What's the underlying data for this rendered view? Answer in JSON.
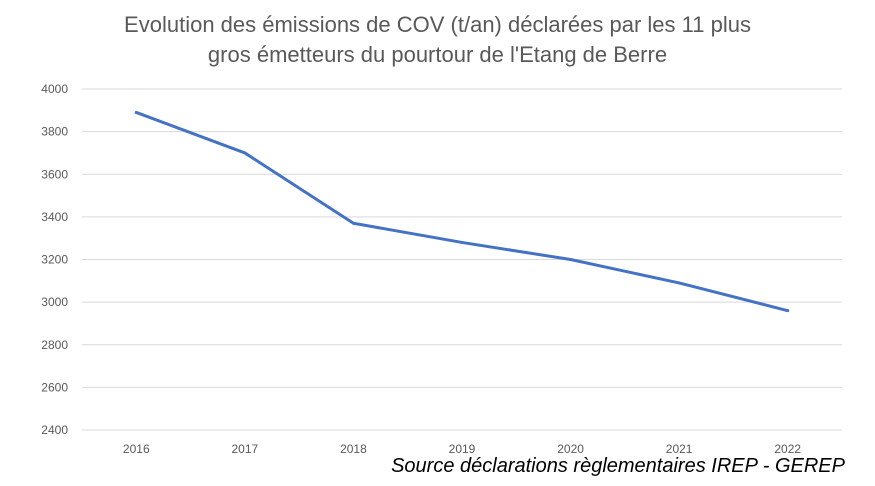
{
  "chart_data": {
    "type": "line",
    "title_lines": [
      "Evolution des émissions de COV (t/an) déclarées par les 11 plus",
      "gros émetteurs du pourtour de l'Etang de Berre"
    ],
    "categories": [
      "2016",
      "2017",
      "2018",
      "2019",
      "2020",
      "2021",
      "2022"
    ],
    "series": [
      {
        "name": "COV (t/an)",
        "values": [
          3890,
          3700,
          3370,
          3280,
          3200,
          3090,
          2960
        ],
        "color": "#4472C4"
      }
    ],
    "ylim": [
      2400,
      4000
    ],
    "yticks": [
      2400,
      2600,
      2800,
      3000,
      3200,
      3400,
      3600,
      3800,
      4000
    ],
    "grid": true,
    "xlabel": "",
    "ylabel": "",
    "legend": "none"
  },
  "source": "Source déclarations règlementaires IREP - GEREP"
}
